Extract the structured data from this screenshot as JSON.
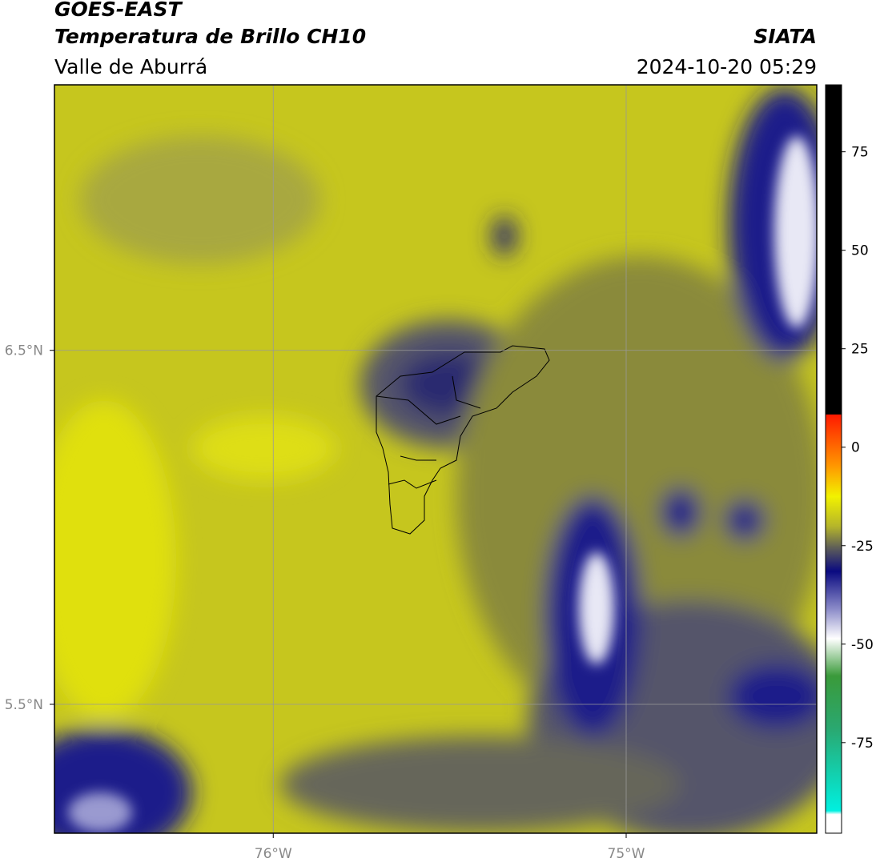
{
  "header": {
    "title": "GOES-EAST",
    "subtitle": "Temperatura de Brillo CH10",
    "region": "Valle de Aburrá",
    "source": "SIATA",
    "datetime": "2024-10-20 05:29"
  },
  "map": {
    "xlim": [
      -76.62,
      -74.46
    ],
    "ylim": [
      5.136,
      7.25
    ],
    "xticks": [
      {
        "value": -76,
        "label": "76°W"
      },
      {
        "value": -75,
        "label": "75°W"
      }
    ],
    "yticks": [
      {
        "value": 6.5,
        "label": "6.5°N"
      },
      {
        "value": 5.5,
        "label": "5.5°N"
      }
    ],
    "grid": true
  },
  "colorbar": {
    "lim": [
      -98,
      92
    ],
    "ticks": [
      75,
      50,
      25,
      0,
      -25,
      -50,
      -75
    ]
  }
}
